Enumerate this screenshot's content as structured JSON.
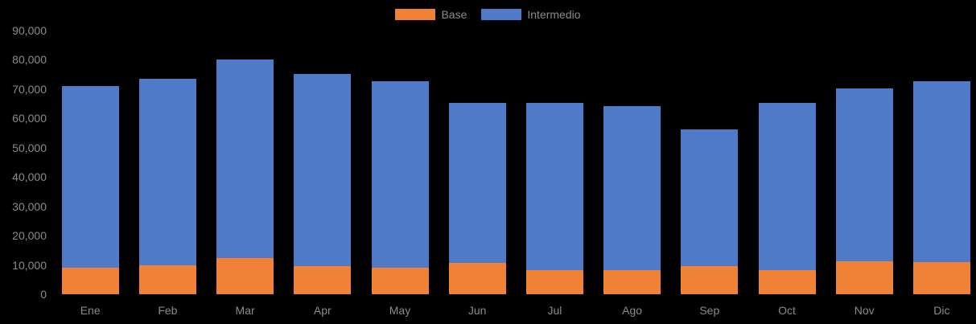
{
  "chart": {
    "background_color": "#000000",
    "text_color": "#8a8a8a",
    "legend": {
      "position": "top-center",
      "items": [
        {
          "label": "Base",
          "color": "#F08238"
        },
        {
          "label": "Intermedio",
          "color": "#4E7AC7"
        }
      ]
    }
  },
  "chart_data": {
    "type": "bar",
    "stacked": true,
    "title": "",
    "xlabel": "",
    "ylabel": "",
    "categories": [
      "Ene",
      "Feb",
      "Mar",
      "Apr",
      "May",
      "Jun",
      "Jul",
      "Ago",
      "Sep",
      "Oct",
      "Nov",
      "Dic"
    ],
    "series": [
      {
        "name": "Base",
        "color": "#F08238",
        "values": [
          9000,
          9800,
          12300,
          9500,
          9000,
          10600,
          8300,
          8300,
          9500,
          8200,
          11200,
          11000
        ]
      },
      {
        "name": "Intermedio",
        "color": "#4E7AC7",
        "values": [
          62000,
          63700,
          67900,
          65700,
          63700,
          54700,
          57100,
          56000,
          46800,
          57000,
          59000,
          61700
        ]
      }
    ],
    "stacked_totals": [
      71000,
      73500,
      80200,
      75200,
      72700,
      65300,
      65400,
      64300,
      56300,
      65200,
      70200,
      72700
    ],
    "ylim": [
      0,
      90000
    ],
    "ytick_step": 10000,
    "ytick_labels": [
      "0",
      "10,000",
      "20,000",
      "30,000",
      "40,000",
      "50,000",
      "60,000",
      "70,000",
      "80,000",
      "90,000"
    ],
    "grid": false,
    "legend_position": "top"
  }
}
